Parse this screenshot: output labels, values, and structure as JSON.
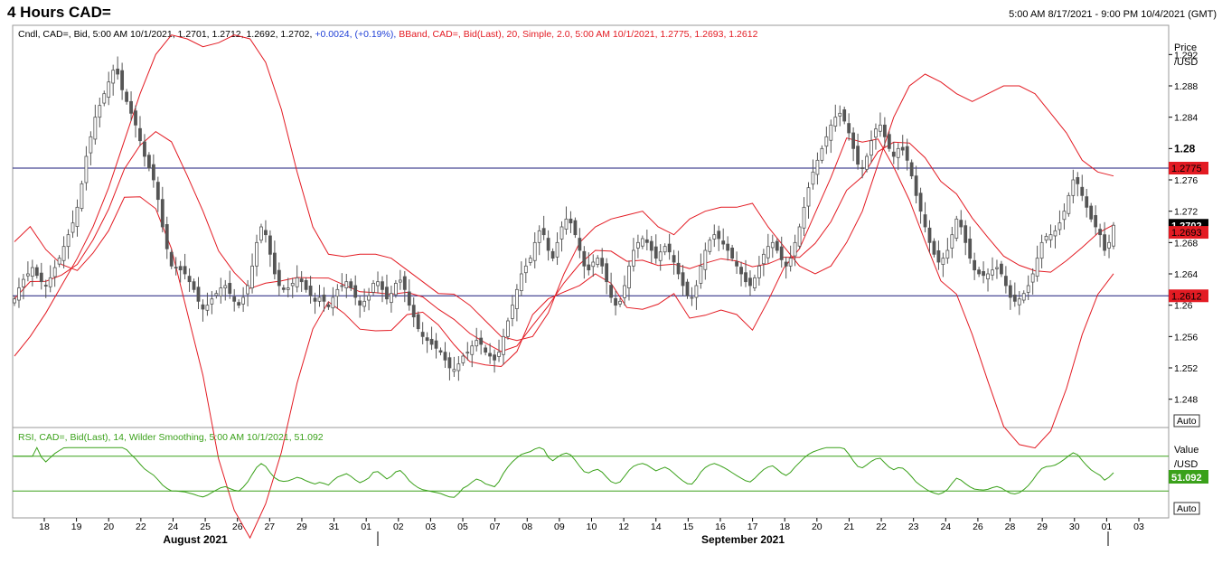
{
  "title": "4 Hours CAD=",
  "date_range": "5:00 AM 8/17/2021 - 9:00 PM 10/4/2021 (GMT)",
  "colors": {
    "candle": "#555555",
    "bband": "#e31b23",
    "hline": "#1a1a7a",
    "rsi": "#3aa11a",
    "legend_blue": "#1f3fd6"
  },
  "price_panel": {
    "legend_candle": "Cndl, CAD=, Bid, 5:00 AM 10/1/2021, 1.2701, 1.2712, 1.2692, 1.2702, ",
    "legend_change": "+0.0024, (+0.19%),",
    "legend_bband": " BBand, CAD=, Bid(Last),  20, Simple, 2.0, 5:00 AM 10/1/2021, 1.2775, 1.2693, 1.2612",
    "axis_title": "Price",
    "axis_unit": "/USD",
    "auto_label": "Auto"
  },
  "rsi_panel": {
    "legend": "RSI, CAD=, Bid(Last),  14, Wilder Smoothing, 5:00 AM 10/1/2021, 51.092",
    "axis_title": "Value",
    "axis_unit": "/USD",
    "current_value": "51.092",
    "auto_label": "Auto"
  },
  "x_axis": {
    "ticks": [
      "18",
      "19",
      "20",
      "22",
      "24",
      "25",
      "26",
      "27",
      "29",
      "31",
      "01",
      "02",
      "03",
      "05",
      "07",
      "08",
      "09",
      "10",
      "12",
      "14",
      "15",
      "16",
      "17",
      "18",
      "20",
      "21",
      "22",
      "23",
      "24",
      "26",
      "28",
      "29",
      "30",
      "01",
      "03"
    ],
    "months": [
      "August 2021",
      "September 2021"
    ]
  },
  "chart_data": [
    {
      "type": "candlestick",
      "title": "",
      "ylim": [
        1.2445,
        1.2955
      ],
      "yticks": [
        "1.292",
        "1.288",
        "1.284",
        "1.28",
        "1.276",
        "1.272",
        "1.268",
        "1.264",
        "1.26",
        "1.256",
        "1.252",
        "1.248"
      ],
      "horizontal_lines": [
        1.2775,
        1.2612
      ],
      "price_labels": [
        {
          "label": "1.2775",
          "value": 1.2775,
          "kind": "upper"
        },
        {
          "label": "1.2702",
          "value": 1.2702,
          "kind": "last"
        },
        {
          "label": "1.2693",
          "value": 1.2693,
          "kind": "mid"
        },
        {
          "label": "1.2612",
          "value": 1.2612,
          "kind": "lower"
        }
      ],
      "close": [
        1.2608,
        1.2622,
        1.2633,
        1.264,
        1.2648,
        1.2638,
        1.263,
        1.2625,
        1.2635,
        1.2648,
        1.266,
        1.2675,
        1.269,
        1.2705,
        1.2725,
        1.2755,
        1.279,
        1.2815,
        1.284,
        1.2855,
        1.287,
        1.2885,
        1.29,
        1.2895,
        1.2875,
        1.286,
        1.2845,
        1.283,
        1.281,
        1.279,
        1.2775,
        1.276,
        1.2735,
        1.27,
        1.2672,
        1.265,
        1.2648,
        1.2645,
        1.264,
        1.263,
        1.262,
        1.2605,
        1.2595,
        1.26,
        1.2608,
        1.2615,
        1.2622,
        1.2625,
        1.2615,
        1.2605,
        1.26,
        1.261,
        1.2625,
        1.265,
        1.268,
        1.27,
        1.269,
        1.2665,
        1.264,
        1.2625,
        1.262,
        1.2622,
        1.2628,
        1.2635,
        1.263,
        1.262,
        1.2612,
        1.2605,
        1.261,
        1.2605,
        1.2598,
        1.261,
        1.262,
        1.2625,
        1.263,
        1.2622,
        1.261,
        1.26,
        1.2605,
        1.2612,
        1.2628,
        1.263,
        1.262,
        1.2608,
        1.2615,
        1.2628,
        1.2632,
        1.262,
        1.26,
        1.2585,
        1.257,
        1.256,
        1.2555,
        1.255,
        1.2545,
        1.254,
        1.253,
        1.252,
        1.2518,
        1.2525,
        1.2535,
        1.254,
        1.2548,
        1.2555,
        1.255,
        1.254,
        1.2535,
        1.253,
        1.254,
        1.256,
        1.258,
        1.26,
        1.262,
        1.264,
        1.265,
        1.266,
        1.268,
        1.2695,
        1.269,
        1.267,
        1.266,
        1.268,
        1.27,
        1.271,
        1.2705,
        1.269,
        1.267,
        1.265,
        1.2645,
        1.2655,
        1.266,
        1.265,
        1.263,
        1.261,
        1.26,
        1.2605,
        1.2625,
        1.265,
        1.267,
        1.268,
        1.2685,
        1.268,
        1.267,
        1.266,
        1.2668,
        1.2675,
        1.2668,
        1.2655,
        1.264,
        1.2625,
        1.2612,
        1.261,
        1.2625,
        1.265,
        1.267,
        1.2683,
        1.269,
        1.2685,
        1.2678,
        1.267,
        1.266,
        1.265,
        1.264,
        1.263,
        1.2625,
        1.2635,
        1.265,
        1.2665,
        1.2675,
        1.268,
        1.267,
        1.2658,
        1.265,
        1.266,
        1.268,
        1.27,
        1.2725,
        1.275,
        1.277,
        1.2785,
        1.28,
        1.2815,
        1.283,
        1.284,
        1.2845,
        1.2835,
        1.282,
        1.28,
        1.278,
        1.2775,
        1.279,
        1.281,
        1.2825,
        1.283,
        1.2815,
        1.28,
        1.279,
        1.28,
        1.2798,
        1.2785,
        1.2765,
        1.274,
        1.272,
        1.27,
        1.268,
        1.2665,
        1.2655,
        1.266,
        1.267,
        1.269,
        1.271,
        1.27,
        1.268,
        1.266,
        1.2645,
        1.264,
        1.2638,
        1.264,
        1.2645,
        1.2648,
        1.264,
        1.2625,
        1.261,
        1.2605,
        1.2608,
        1.2615,
        1.2625,
        1.264,
        1.266,
        1.268,
        1.2688,
        1.269,
        1.2695,
        1.2705,
        1.272,
        1.274,
        1.276,
        1.2755,
        1.274,
        1.2725,
        1.271,
        1.27,
        1.269,
        1.267,
        1.268,
        1.2702
      ],
      "upper_band": [
        1.2535,
        1.256,
        1.259,
        1.2625,
        1.266,
        1.27,
        1.275,
        1.281,
        1.287,
        1.292,
        1.2945,
        1.294,
        1.293,
        1.2935,
        1.2945,
        1.294,
        1.291,
        1.285,
        1.277,
        1.27,
        1.2665,
        1.2662,
        1.2665,
        1.2665,
        1.266,
        1.2645,
        1.263,
        1.2615,
        1.2614,
        1.26,
        1.258,
        1.256,
        1.2555,
        1.256,
        1.259,
        1.264,
        1.268,
        1.27,
        1.271,
        1.2715,
        1.272,
        1.27,
        1.269,
        1.271,
        1.272,
        1.2725,
        1.2725,
        1.273,
        1.27,
        1.2675,
        1.265,
        1.264,
        1.265,
        1.268,
        1.272,
        1.278,
        1.284,
        1.288,
        1.2895,
        1.2885,
        1.287,
        1.286,
        1.287,
        1.288,
        1.288,
        1.287,
        1.2845,
        1.282,
        1.2785,
        1.277,
        1.2765
      ]
    },
    {
      "type": "line",
      "title": "",
      "ylim": [
        0,
        100
      ],
      "reference_lines": [
        70,
        30
      ],
      "last_value": 51.092
    }
  ]
}
